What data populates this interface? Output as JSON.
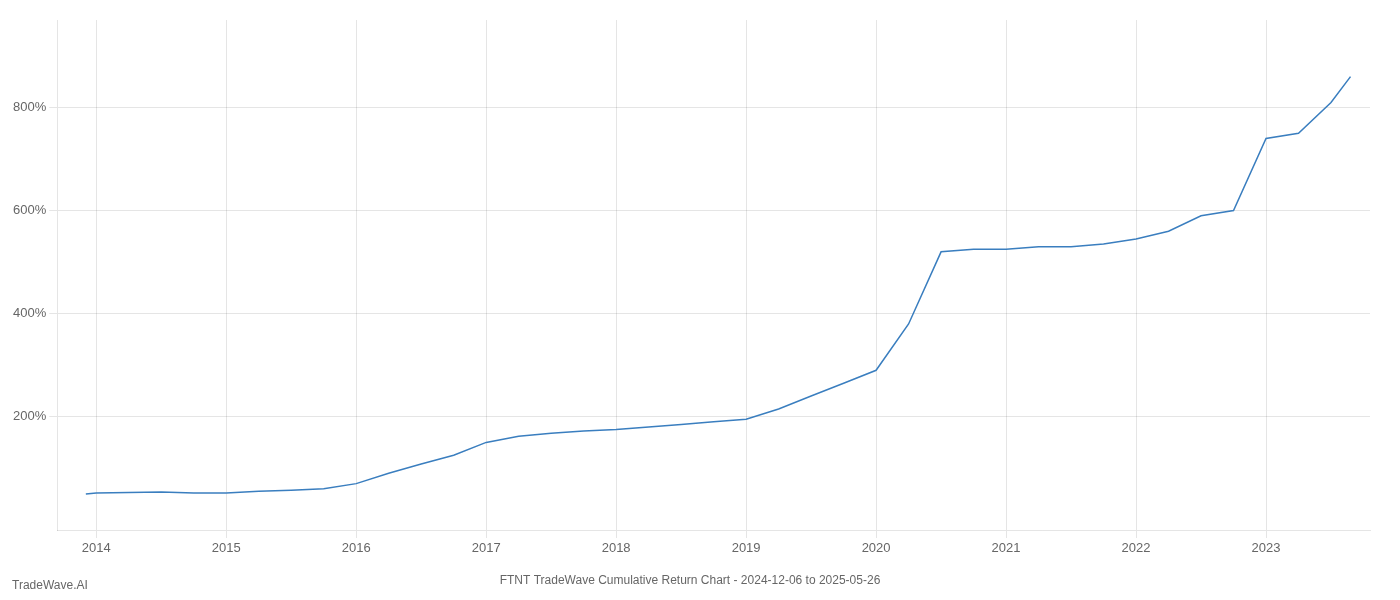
{
  "chart_data": {
    "type": "line",
    "title": "FTNT TradeWave Cumulative Return Chart - 2024-12-06 to 2025-05-26",
    "annotations": [
      "TradeWave.AI"
    ],
    "x": [
      2013.92,
      2014.0,
      2014.25,
      2014.5,
      2014.75,
      2015.0,
      2015.25,
      2015.5,
      2015.75,
      2016.0,
      2016.25,
      2016.5,
      2016.75,
      2017.0,
      2017.25,
      2017.5,
      2017.75,
      2018.0,
      2018.25,
      2018.5,
      2018.75,
      2019.0,
      2019.25,
      2019.5,
      2019.75,
      2020.0,
      2020.25,
      2020.5,
      2020.75,
      2021.0,
      2021.25,
      2021.5,
      2021.75,
      2022.0,
      2022.25,
      2022.5,
      2022.75,
      2023.0,
      2023.25,
      2023.5,
      2023.65
    ],
    "values": [
      50,
      52,
      53,
      54,
      52,
      52,
      55,
      57,
      60,
      70,
      90,
      108,
      125,
      150,
      162,
      168,
      172,
      175,
      180,
      185,
      190,
      195,
      215,
      240,
      265,
      290,
      380,
      520,
      525,
      525,
      530,
      530,
      535,
      545,
      560,
      590,
      600,
      740,
      750,
      810,
      860
    ],
    "color": "#3a7ebf",
    "xlim": [
      2013.7,
      2023.8
    ],
    "xticks": [
      2014,
      2015,
      2016,
      2017,
      2018,
      2019,
      2020,
      2021,
      2022,
      2023
    ],
    "ylim": [
      -20,
      970
    ],
    "yticks": [
      {
        "value": 200,
        "label": "200%"
      },
      {
        "value": 400,
        "label": "400%"
      },
      {
        "value": 600,
        "label": "600%"
      },
      {
        "value": 800,
        "label": "800%"
      }
    ],
    "grid": true
  }
}
